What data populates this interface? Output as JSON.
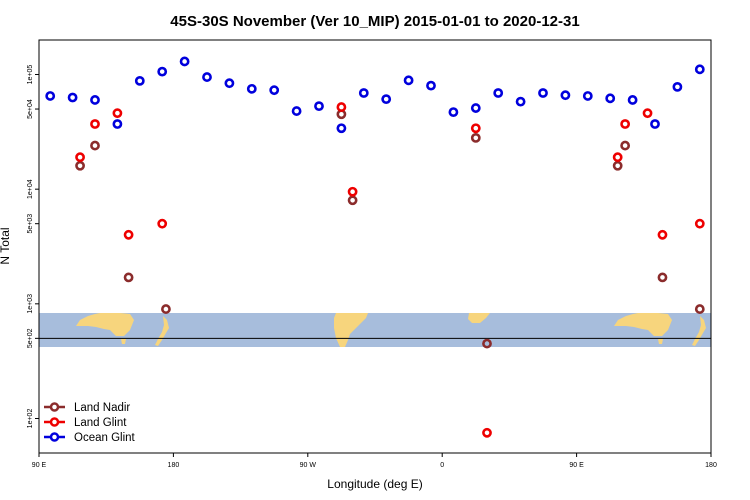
{
  "chart_data": {
    "type": "scatter",
    "title": "45S-30S November (Ver 10_MIP)   2015-01-01 to 2020-12-31",
    "xlabel": "Longitude (deg E)",
    "ylabel": "N Total",
    "x_ticks": [
      {
        "value": 90,
        "label": "90 E"
      },
      {
        "value": 180,
        "label": "180"
      },
      {
        "value": 270,
        "label": "90 W"
      },
      {
        "value": 360,
        "label": "0"
      },
      {
        "value": 450,
        "label": "90 E"
      },
      {
        "value": 540,
        "label": "180"
      }
    ],
    "y_ticks": [
      {
        "value": 100,
        "label": "1e+02"
      },
      {
        "value": 500,
        "label": "5e+02"
      },
      {
        "value": 1000,
        "label": "1e+03"
      },
      {
        "value": 5000,
        "label": "5e+03"
      },
      {
        "value": 10000,
        "label": "1e+04"
      },
      {
        "value": 50000,
        "label": "5e+04"
      },
      {
        "value": 100000,
        "label": "1e+05"
      }
    ],
    "xlim": [
      90,
      540
    ],
    "ylim": [
      50,
      200000
    ],
    "y_scale": "log",
    "grid": false,
    "legend_position": "bottom-left",
    "reference_line_y": 500,
    "series": [
      {
        "name": "Land Nadir",
        "color": "#8B2C2C",
        "points": [
          [
            117.5,
            16000
          ],
          [
            127.5,
            24000
          ],
          [
            150,
            1700
          ],
          [
            175,
            900
          ],
          [
            292.5,
            45000
          ],
          [
            300,
            8000
          ],
          [
            382.5,
            28000
          ],
          [
            390,
            450
          ],
          [
            477.5,
            16000
          ],
          [
            482.5,
            24000
          ],
          [
            507.5,
            1700
          ],
          [
            532.5,
            900
          ]
        ]
      },
      {
        "name": "Land Glint",
        "color": "#EE0000",
        "points": [
          [
            117.5,
            19000
          ],
          [
            127.5,
            37000
          ],
          [
            142.5,
            46000
          ],
          [
            150,
            4000
          ],
          [
            172.5,
            5000
          ],
          [
            292.5,
            52000
          ],
          [
            300,
            9500
          ],
          [
            382.5,
            34000
          ],
          [
            390,
            75
          ],
          [
            477.5,
            19000
          ],
          [
            482.5,
            37000
          ],
          [
            497.5,
            46000
          ],
          [
            507.5,
            4000
          ],
          [
            532.5,
            5000
          ]
        ]
      },
      {
        "name": "Ocean Glint",
        "color": "#0000DD",
        "points": [
          [
            97.5,
            65000
          ],
          [
            112.5,
            63000
          ],
          [
            127.5,
            60000
          ],
          [
            142.5,
            37000
          ],
          [
            157.5,
            88000
          ],
          [
            172.5,
            106000
          ],
          [
            187.5,
            130000
          ],
          [
            202.5,
            95000
          ],
          [
            217.5,
            84000
          ],
          [
            232.5,
            75000
          ],
          [
            247.5,
            73000
          ],
          [
            262.5,
            48000
          ],
          [
            277.5,
            53000
          ],
          [
            292.5,
            34000
          ],
          [
            307.5,
            69000
          ],
          [
            322.5,
            61000
          ],
          [
            337.5,
            89000
          ],
          [
            352.5,
            80000
          ],
          [
            367.5,
            47000
          ],
          [
            382.5,
            51000
          ],
          [
            397.5,
            69000
          ],
          [
            412.5,
            58000
          ],
          [
            427.5,
            69000
          ],
          [
            442.5,
            66000
          ],
          [
            457.5,
            65000
          ],
          [
            472.5,
            62000
          ],
          [
            487.5,
            60000
          ],
          [
            502.5,
            37000
          ],
          [
            517.5,
            78000
          ],
          [
            532.5,
            111000
          ]
        ]
      }
    ]
  }
}
